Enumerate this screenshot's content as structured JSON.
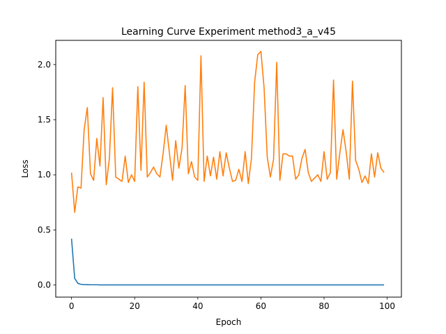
{
  "chart_data": {
    "type": "line",
    "title": "Learning Curve Experiment method3_a_v45",
    "xlabel": "Epoch",
    "ylabel": "Loss",
    "xlim": [
      -5,
      104.5
    ],
    "ylim": [
      -0.11,
      2.22
    ],
    "xticks": [
      0,
      20,
      40,
      60,
      80,
      100
    ],
    "yticks": [
      0.0,
      0.5,
      1.0,
      1.5,
      2.0
    ],
    "xtick_labels": [
      "0",
      "20",
      "40",
      "60",
      "80",
      "100"
    ],
    "ytick_labels": [
      "0.0",
      "0.5",
      "1.0",
      "1.5",
      "2.0"
    ],
    "grid": false,
    "legend": null,
    "series": [
      {
        "color": "#1f77b4",
        "x": [
          0,
          1,
          2,
          3,
          4,
          5,
          6,
          7,
          8,
          9,
          10,
          11,
          12,
          13,
          14,
          15,
          16,
          17,
          18,
          19,
          20,
          21,
          22,
          23,
          24,
          25,
          26,
          27,
          28,
          29,
          30,
          31,
          32,
          33,
          34,
          35,
          36,
          37,
          38,
          39,
          40,
          41,
          42,
          43,
          44,
          45,
          46,
          47,
          48,
          49,
          50,
          51,
          52,
          53,
          54,
          55,
          56,
          57,
          58,
          59,
          60,
          61,
          62,
          63,
          64,
          65,
          66,
          67,
          68,
          69,
          70,
          71,
          72,
          73,
          74,
          75,
          76,
          77,
          78,
          79,
          80,
          81,
          82,
          83,
          84,
          85,
          86,
          87,
          88,
          89,
          90,
          91,
          92,
          93,
          94,
          95,
          96,
          97,
          98,
          99
        ],
        "values": [
          0.42,
          0.06,
          0.015,
          0.006,
          0.004,
          0.003,
          0.002,
          0.002,
          0.002,
          0.001,
          0.001,
          0.001,
          0.001,
          0.001,
          0.001,
          0.001,
          0.001,
          0.001,
          0.001,
          0.001,
          0.001,
          0.001,
          0.001,
          0.001,
          0.001,
          0.001,
          0.001,
          0.001,
          0.001,
          0.001,
          0.001,
          0.001,
          0.001,
          0.001,
          0.001,
          0.001,
          0.001,
          0.001,
          0.001,
          0.001,
          0.001,
          0.001,
          0.001,
          0.001,
          0.001,
          0.001,
          0.001,
          0.001,
          0.001,
          0.001,
          0.001,
          0.001,
          0.001,
          0.001,
          0.001,
          0.001,
          0.001,
          0.001,
          0.001,
          0.001,
          0.001,
          0.001,
          0.001,
          0.001,
          0.001,
          0.001,
          0.001,
          0.001,
          0.001,
          0.001,
          0.001,
          0.001,
          0.001,
          0.001,
          0.001,
          0.001,
          0.001,
          0.001,
          0.001,
          0.001,
          0.001,
          0.001,
          0.001,
          0.001,
          0.001,
          0.001,
          0.001,
          0.001,
          0.001,
          0.001,
          0.001,
          0.001,
          0.001,
          0.001,
          0.001,
          0.001,
          0.001,
          0.001,
          0.001,
          0.001
        ]
      },
      {
        "color": "#ff7f0e",
        "x": [
          0,
          1,
          2,
          3,
          4,
          5,
          6,
          7,
          8,
          9,
          10,
          11,
          12,
          13,
          14,
          15,
          16,
          17,
          18,
          19,
          20,
          21,
          22,
          23,
          24,
          25,
          26,
          27,
          28,
          29,
          30,
          31,
          32,
          33,
          34,
          35,
          36,
          37,
          38,
          39,
          40,
          41,
          42,
          43,
          44,
          45,
          46,
          47,
          48,
          49,
          50,
          51,
          52,
          53,
          54,
          55,
          56,
          57,
          58,
          59,
          60,
          61,
          62,
          63,
          64,
          65,
          66,
          67,
          68,
          69,
          70,
          71,
          72,
          73,
          74,
          75,
          76,
          77,
          78,
          79,
          80,
          81,
          82,
          83,
          84,
          85,
          86,
          87,
          88,
          89,
          90,
          91,
          92,
          93,
          94,
          95,
          96,
          97,
          98,
          99
        ],
        "values": [
          1.02,
          0.66,
          0.89,
          0.88,
          1.41,
          1.61,
          1.01,
          0.95,
          1.33,
          1.08,
          1.7,
          0.91,
          1.15,
          1.79,
          0.98,
          0.96,
          0.94,
          1.17,
          0.93,
          1.0,
          0.94,
          1.8,
          1.04,
          1.84,
          0.98,
          1.02,
          1.07,
          1.01,
          0.98,
          1.19,
          1.45,
          1.2,
          0.95,
          1.31,
          1.06,
          1.24,
          1.81,
          1.01,
          1.12,
          0.98,
          0.95,
          2.08,
          0.94,
          1.17,
          0.99,
          1.16,
          0.96,
          1.21,
          0.99,
          1.2,
          1.06,
          0.94,
          0.95,
          1.05,
          0.94,
          1.21,
          0.92,
          1.15,
          1.84,
          2.09,
          2.12,
          1.79,
          1.16,
          0.98,
          1.14,
          2.02,
          0.95,
          1.19,
          1.19,
          1.17,
          1.17,
          0.96,
          1.0,
          1.15,
          1.23,
          1.02,
          0.94,
          0.97,
          1.0,
          0.94,
          1.21,
          0.96,
          1.02,
          1.86,
          0.96,
          1.2,
          1.41,
          1.21,
          0.96,
          1.85,
          1.13,
          1.05,
          0.93,
          0.99,
          0.92,
          1.19,
          0.98,
          1.2,
          1.06,
          1.02
        ]
      }
    ]
  }
}
